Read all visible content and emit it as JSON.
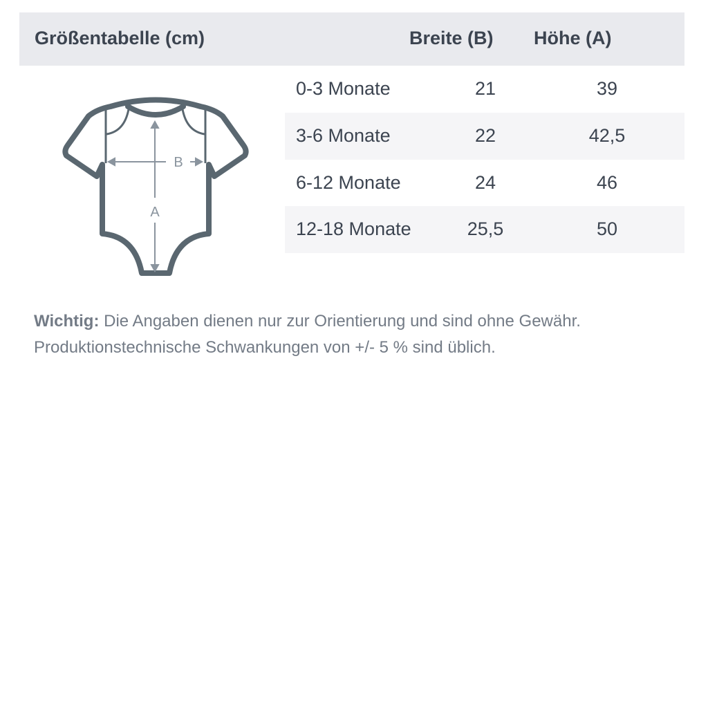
{
  "table": {
    "title": "Größentabelle (cm)",
    "headers": [
      "Breite (B)",
      "Höhe (A)"
    ],
    "rows": [
      {
        "size": "0-3 Monate",
        "breite": "21",
        "hoehe": "39"
      },
      {
        "size": "3-6 Monate",
        "breite": "22",
        "hoehe": "42,5"
      },
      {
        "size": "6-12 Monate",
        "breite": "24",
        "hoehe": "46"
      },
      {
        "size": "12-18 Monate",
        "breite": "25,5",
        "hoehe": "50"
      }
    ]
  },
  "diagram": {
    "label_width": "B",
    "label_height": "A",
    "outline_color": "#5a6770",
    "arrow_color": "#8a949e"
  },
  "note": {
    "label": "Wichtig:",
    "line1": " Die Angaben dienen nur zur Orientierung und sind ohne Gewähr.",
    "line2": "Produktionstechnische Schwankungen von +/- 5 % sind üblich."
  }
}
